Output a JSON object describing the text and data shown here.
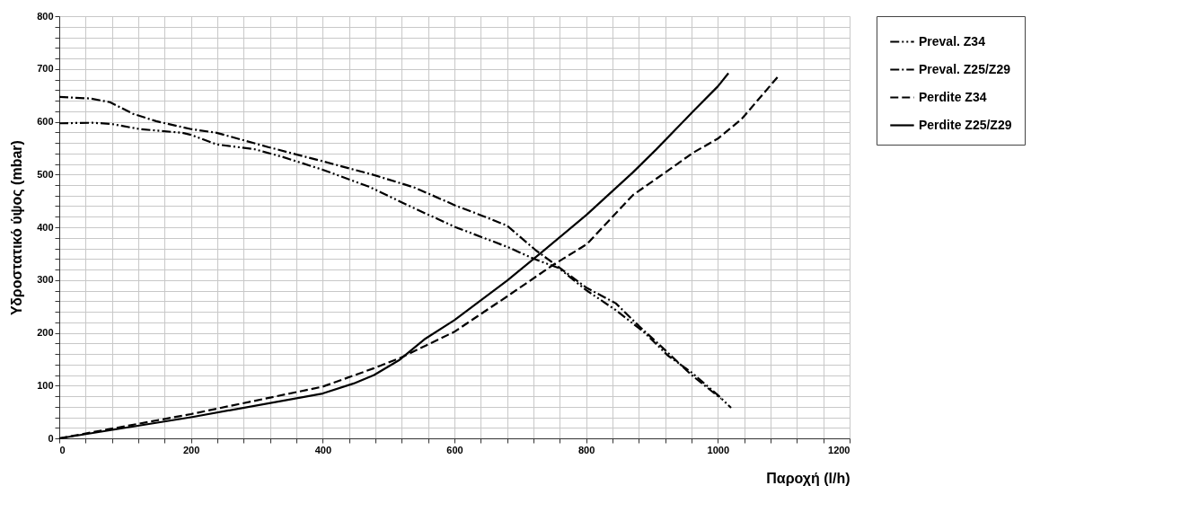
{
  "chart_data": {
    "type": "line",
    "xlabel": "Παροχή (l/h)",
    "ylabel": "Υδροστατικό ύψος (mbar)",
    "xlim": [
      0,
      1200
    ],
    "ylim": [
      0,
      800
    ],
    "xticks": [
      0,
      {
        "value": 40,
        "label": null
      },
      {
        "value": 80,
        "label": null
      },
      {
        "value": 120,
        "label": null
      },
      {
        "value": 160,
        "label": null
      },
      200,
      {
        "value": 240,
        "label": null
      },
      {
        "value": 280,
        "label": null
      },
      {
        "value": 320,
        "label": null
      },
      {
        "value": 360,
        "label": null
      },
      400,
      {
        "value": 440,
        "label": null
      },
      {
        "value": 480,
        "label": null
      },
      {
        "value": 520,
        "label": null
      },
      {
        "value": 560,
        "label": null
      },
      600,
      {
        "value": 640,
        "label": null
      },
      {
        "value": 680,
        "label": null
      },
      {
        "value": 720,
        "label": null
      },
      {
        "value": 760,
        "label": null
      },
      800,
      {
        "value": 840,
        "label": null
      },
      {
        "value": 880,
        "label": null
      },
      {
        "value": 920,
        "label": null
      },
      {
        "value": 960,
        "label": null
      },
      1000,
      {
        "value": 1040,
        "label": null
      },
      {
        "value": 1080,
        "label": null
      },
      {
        "value": 1120,
        "label": null
      },
      {
        "value": 1160,
        "label": null
      },
      1200
    ],
    "yticks": [
      0,
      {
        "value": 20,
        "label": null
      },
      {
        "value": 40,
        "label": null
      },
      {
        "value": 60,
        "label": null
      },
      {
        "value": 80,
        "label": null
      },
      100,
      {
        "value": 120,
        "label": null
      },
      {
        "value": 140,
        "label": null
      },
      {
        "value": 160,
        "label": null
      },
      {
        "value": 180,
        "label": null
      },
      200,
      {
        "value": 220,
        "label": null
      },
      {
        "value": 240,
        "label": null
      },
      {
        "value": 260,
        "label": null
      },
      {
        "value": 280,
        "label": null
      },
      300,
      {
        "value": 320,
        "label": null
      },
      {
        "value": 340,
        "label": null
      },
      {
        "value": 360,
        "label": null
      },
      {
        "value": 380,
        "label": null
      },
      400,
      {
        "value": 420,
        "label": null
      },
      {
        "value": 440,
        "label": null
      },
      {
        "value": 460,
        "label": null
      },
      {
        "value": 480,
        "label": null
      },
      500,
      {
        "value": 520,
        "label": null
      },
      {
        "value": 540,
        "label": null
      },
      {
        "value": 560,
        "label": null
      },
      {
        "value": 580,
        "label": null
      },
      600,
      {
        "value": 620,
        "label": null
      },
      {
        "value": 640,
        "label": null
      },
      {
        "value": 660,
        "label": null
      },
      {
        "value": 680,
        "label": null
      },
      700,
      {
        "value": 720,
        "label": null
      },
      {
        "value": 740,
        "label": null
      },
      {
        "value": 760,
        "label": null
      },
      {
        "value": 780,
        "label": null
      },
      800
    ],
    "grid": true,
    "legend": "top right",
    "marker": "none",
    "series": [
      {
        "name": "Preval. Z34",
        "color": "#000000",
        "line_style": "dashdotdot",
        "x": [
          0,
          50,
          78,
          122,
          187,
          200,
          239,
          296,
          340,
          400,
          470,
          539,
          602,
          680,
          723,
          758,
          801,
          845,
          889,
          924,
          960,
          1000,
          1020
        ],
        "values": [
          597,
          598,
          596,
          586,
          579,
          575,
          557,
          548,
          533,
          509,
          477,
          436,
          400,
          363,
          339,
          323,
          280,
          243,
          200,
          157,
          125,
          82,
          58
        ]
      },
      {
        "name": "Preval. Z25/Z29",
        "color": "#000000",
        "line_style": "dashdot",
        "x": [
          0,
          47,
          77,
          112,
          147,
          200,
          239,
          317,
          400,
          478,
          540,
          602,
          644,
          680,
          723,
          801,
          845,
          880,
          915,
          960,
          1005
        ],
        "values": [
          647,
          644,
          637,
          615,
          601,
          586,
          579,
          552,
          525,
          499,
          475,
          441,
          421,
          403,
          357,
          285,
          256,
          213,
          173,
          120,
          75
        ]
      },
      {
        "name": "Perdite Z34",
        "color": "#000000",
        "line_style": "dashed",
        "x": [
          0,
          200,
          400,
          478,
          517,
          600,
          680,
          749,
          801,
          871,
          918,
          962,
          1000,
          1036,
          1093
        ],
        "values": [
          0,
          46,
          98,
          133,
          152,
          202,
          269,
          328,
          368,
          461,
          502,
          541,
          568,
          605,
          688
        ]
      },
      {
        "name": "Perdite Z25/Z29",
        "color": "#000000",
        "line_style": "solid",
        "x": [
          0,
          200,
          400,
          447,
          478,
          517,
          556,
          600,
          680,
          732,
          801,
          871,
          906,
          962,
          1000,
          1016
        ],
        "values": [
          0,
          40,
          85,
          104,
          120,
          149,
          189,
          224,
          299,
          352,
          424,
          504,
          547,
          619,
          667,
          692
        ]
      }
    ]
  }
}
